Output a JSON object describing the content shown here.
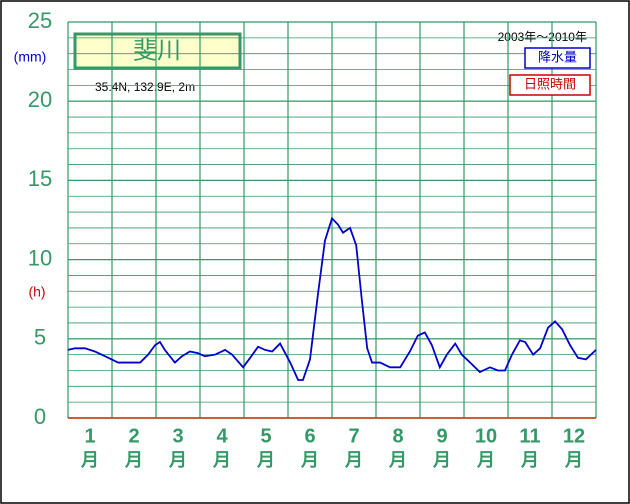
{
  "chart_data": {
    "type": "line",
    "title": "斐川",
    "location": "35.4N, 132.9E, 2m",
    "period": "2003年～2010年",
    "y_unit": "(mm)",
    "y2_unit": "(h)",
    "categories": [
      "1",
      "2",
      "3",
      "4",
      "5",
      "6",
      "7",
      "8",
      "9",
      "10",
      "11",
      "12"
    ],
    "category_suffix": "月",
    "xlim": [
      0,
      12
    ],
    "xticks": [
      0,
      1,
      2,
      3,
      4,
      5,
      6,
      7,
      8,
      9,
      10,
      11,
      12
    ],
    "ylim": [
      0,
      25
    ],
    "yticks": [
      0,
      5,
      10,
      15,
      20,
      25
    ],
    "y_minor_step": 1,
    "grid": true,
    "series": [
      {
        "name": "降水量",
        "color": "#0000cc",
        "x": [
          0,
          0.16,
          0.39,
          0.61,
          0.84,
          1.14,
          1.41,
          1.64,
          1.82,
          1.98,
          2.09,
          2.2,
          2.43,
          2.59,
          2.77,
          2.95,
          3.11,
          3.34,
          3.57,
          3.73,
          3.98,
          4.14,
          4.32,
          4.48,
          4.64,
          4.82,
          5.05,
          5.23,
          5.34,
          5.5,
          5.68,
          5.84,
          6.0,
          6.14,
          6.25,
          6.41,
          6.55,
          6.68,
          6.8,
          6.91,
          7.09,
          7.32,
          7.55,
          7.77,
          7.95,
          8.11,
          8.27,
          8.45,
          8.61,
          8.8,
          8.95,
          9.14,
          9.36,
          9.59,
          9.77,
          9.93,
          10.09,
          10.27,
          10.39,
          10.57,
          10.73,
          10.91,
          11.07,
          11.23,
          11.41,
          11.59,
          11.77,
          12
        ],
        "values": [
          4.3,
          4.4,
          4.4,
          4.2,
          3.9,
          3.5,
          3.5,
          3.5,
          4.0,
          4.6,
          4.8,
          4.3,
          3.5,
          3.9,
          4.2,
          4.1,
          3.9,
          4.0,
          4.3,
          4.0,
          3.2,
          3.8,
          4.5,
          4.3,
          4.2,
          4.7,
          3.5,
          2.4,
          2.4,
          3.7,
          7.8,
          11.2,
          12.6,
          12.2,
          11.7,
          12.0,
          10.9,
          7.4,
          4.4,
          3.5,
          3.5,
          3.2,
          3.2,
          4.2,
          5.2,
          5.4,
          4.6,
          3.2,
          4.0,
          4.7,
          4.0,
          3.5,
          2.9,
          3.2,
          3.0,
          3.0,
          4.0,
          4.9,
          4.8,
          4.0,
          4.4,
          5.7,
          6.1,
          5.6,
          4.6,
          3.8,
          3.7,
          4.3
        ]
      },
      {
        "name": "日照時間",
        "color": "#cc0000",
        "x": [],
        "values": []
      }
    ]
  }
}
